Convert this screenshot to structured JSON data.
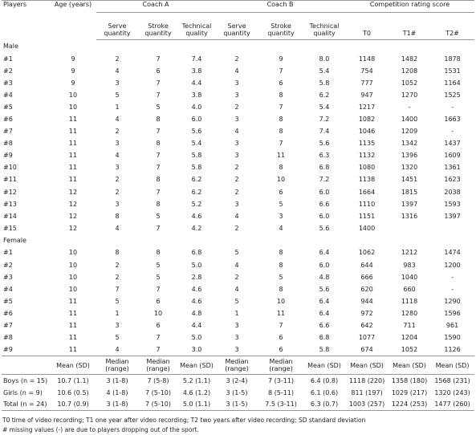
{
  "header": {
    "players": "Players",
    "age": "Age (years)",
    "coach_a": "Coach A",
    "coach_b": "Coach B",
    "competition": "Competition rating score"
  },
  "subheader": [
    "Serve quantity",
    "Stroke quantity",
    "Technical quality",
    "Serve quantity",
    "Stroke quantity",
    "Technical quality",
    "T0",
    "T1#",
    "T2#"
  ],
  "sections": [
    {
      "label": "Male",
      "rows": [
        [
          "#1",
          "9",
          "2",
          "7",
          "7.4",
          "2",
          "9",
          "8.0",
          "1148",
          "1482",
          "1878"
        ],
        [
          "#2",
          "9",
          "4",
          "6",
          "3.8",
          "4",
          "7",
          "5.4",
          "754",
          "1208",
          "1531"
        ],
        [
          "#3",
          "9",
          "3",
          "7",
          "4.4",
          "3",
          "6",
          "5.8",
          "777",
          "1052",
          "1164"
        ],
        [
          "#4",
          "10",
          "5",
          "7",
          "3.8",
          "3",
          "8",
          "6.2",
          "947",
          "1270",
          "1525"
        ],
        [
          "#5",
          "10",
          "1",
          "5",
          "4.0",
          "2",
          "7",
          "5.4",
          "1217",
          "-",
          "-"
        ],
        [
          "#6",
          "11",
          "4",
          "8",
          "6.0",
          "3",
          "8",
          "7.2",
          "1082",
          "1400",
          "1663"
        ],
        [
          "#7",
          "11",
          "2",
          "7",
          "5.6",
          "4",
          "8",
          "7.4",
          "1046",
          "1209",
          "-"
        ],
        [
          "#8",
          "11",
          "3",
          "8",
          "5.4",
          "3",
          "7",
          "5.6",
          "1135",
          "1342",
          "1437"
        ],
        [
          "#9",
          "11",
          "4",
          "7",
          "5.8",
          "3",
          "11",
          "6.3",
          "1132",
          "1396",
          "1609"
        ],
        [
          "#10",
          "11",
          "3",
          "7",
          "5.8",
          "2",
          "8",
          "6.8",
          "1080",
          "1320",
          "1361"
        ],
        [
          "#11",
          "11",
          "2",
          "8",
          "6.2",
          "2",
          "10",
          "7.2",
          "1138",
          "1451",
          "1623"
        ],
        [
          "#12",
          "12",
          "2",
          "7",
          "6.2",
          "2",
          "6",
          "6.0",
          "1664",
          "1815",
          "2038"
        ],
        [
          "#13",
          "12",
          "3",
          "8",
          "5.2",
          "3",
          "5",
          "6.6",
          "1110",
          "1397",
          "1593"
        ],
        [
          "#14",
          "12",
          "8",
          "5",
          "4.6",
          "4",
          "3",
          "6.0",
          "1151",
          "1316",
          "1397"
        ],
        [
          "#15",
          "12",
          "4",
          "7",
          "4.2",
          "2",
          "4",
          "5.6",
          "1400",
          null,
          null
        ]
      ]
    },
    {
      "label": "Female",
      "rows": [
        [
          "#1",
          "10",
          "8",
          "8",
          "6.8",
          "5",
          "8",
          "6.4",
          "1062",
          "1212",
          "1474"
        ],
        [
          "#2",
          "10",
          "2",
          "5",
          "5.0",
          "4",
          "8",
          "6.0",
          "644",
          "983",
          "1200"
        ],
        [
          "#3",
          "10",
          "2",
          "5",
          "2.8",
          "2",
          "5",
          "4.8",
          "666",
          "1040",
          "-"
        ],
        [
          "#4",
          "10",
          "7",
          "7",
          "4.6",
          "4",
          "8",
          "5.6",
          "620",
          "660",
          "-"
        ],
        [
          "#5",
          "11",
          "5",
          "6",
          "4.6",
          "5",
          "10",
          "6.4",
          "944",
          "1118",
          "1290"
        ],
        [
          "#6",
          "11",
          "1",
          "10",
          "4.8",
          "1",
          "11",
          "6.4",
          "972",
          "1280",
          "1596"
        ],
        [
          "#7",
          "11",
          "3",
          "6",
          "4.4",
          "3",
          "7",
          "6.6",
          "642",
          "711",
          "961"
        ],
        [
          "#8",
          "11",
          "5",
          "7",
          "5.0",
          "3",
          "6",
          "6.8",
          "1077",
          "1204",
          "1590"
        ],
        [
          "#9",
          "11",
          "4",
          "7",
          "3.0",
          "3",
          "6",
          "5.8",
          "674",
          "1052",
          "1126"
        ]
      ]
    }
  ],
  "summary": {
    "header": [
      "Mean (SD)",
      "Median (range)",
      "Median (range)",
      "Mean (SD)",
      "Median (range)",
      "Median (range)",
      "Mean (SD)",
      "Mean (SD)",
      "Mean (SD)",
      "Mean (SD)"
    ],
    "rows": [
      [
        "Boys (n = 15)",
        "10.7 (1.1)",
        "3 (1-8)",
        "7 (5-8)",
        "5.2 (1.1)",
        "3 (2-4)",
        "7 (3-11)",
        "6.4 (0.8)",
        "1118 (220)",
        "1358 (180)",
        "1568 (231)"
      ],
      [
        "Girls (n = 9)",
        "10.6 (0.5)",
        "4 (1-8)",
        "7 (5-10)",
        "4.6 (1.2)",
        "3 (1-5)",
        "8 (5-11)",
        "6.1 (0.6)",
        "811 (197)",
        "1029 (217)",
        "1320 (243)"
      ],
      [
        "Total (n = 24)",
        "10.7 (0.9)",
        "3 (1-8)",
        "7 (5-10)",
        "5.0 (1.1)",
        "3 (1-5)",
        "7.5 (3-11)",
        "6.3 (0.7)",
        "1003 (257)",
        "1224 (253)",
        "1477 (260)"
      ]
    ]
  },
  "footnotes": [
    "T0 time of video recording; T1 one year after video recording; T2 two years after video recording; SD standard deviation",
    "# missing values (-) are due to players dropping out of the sport."
  ]
}
